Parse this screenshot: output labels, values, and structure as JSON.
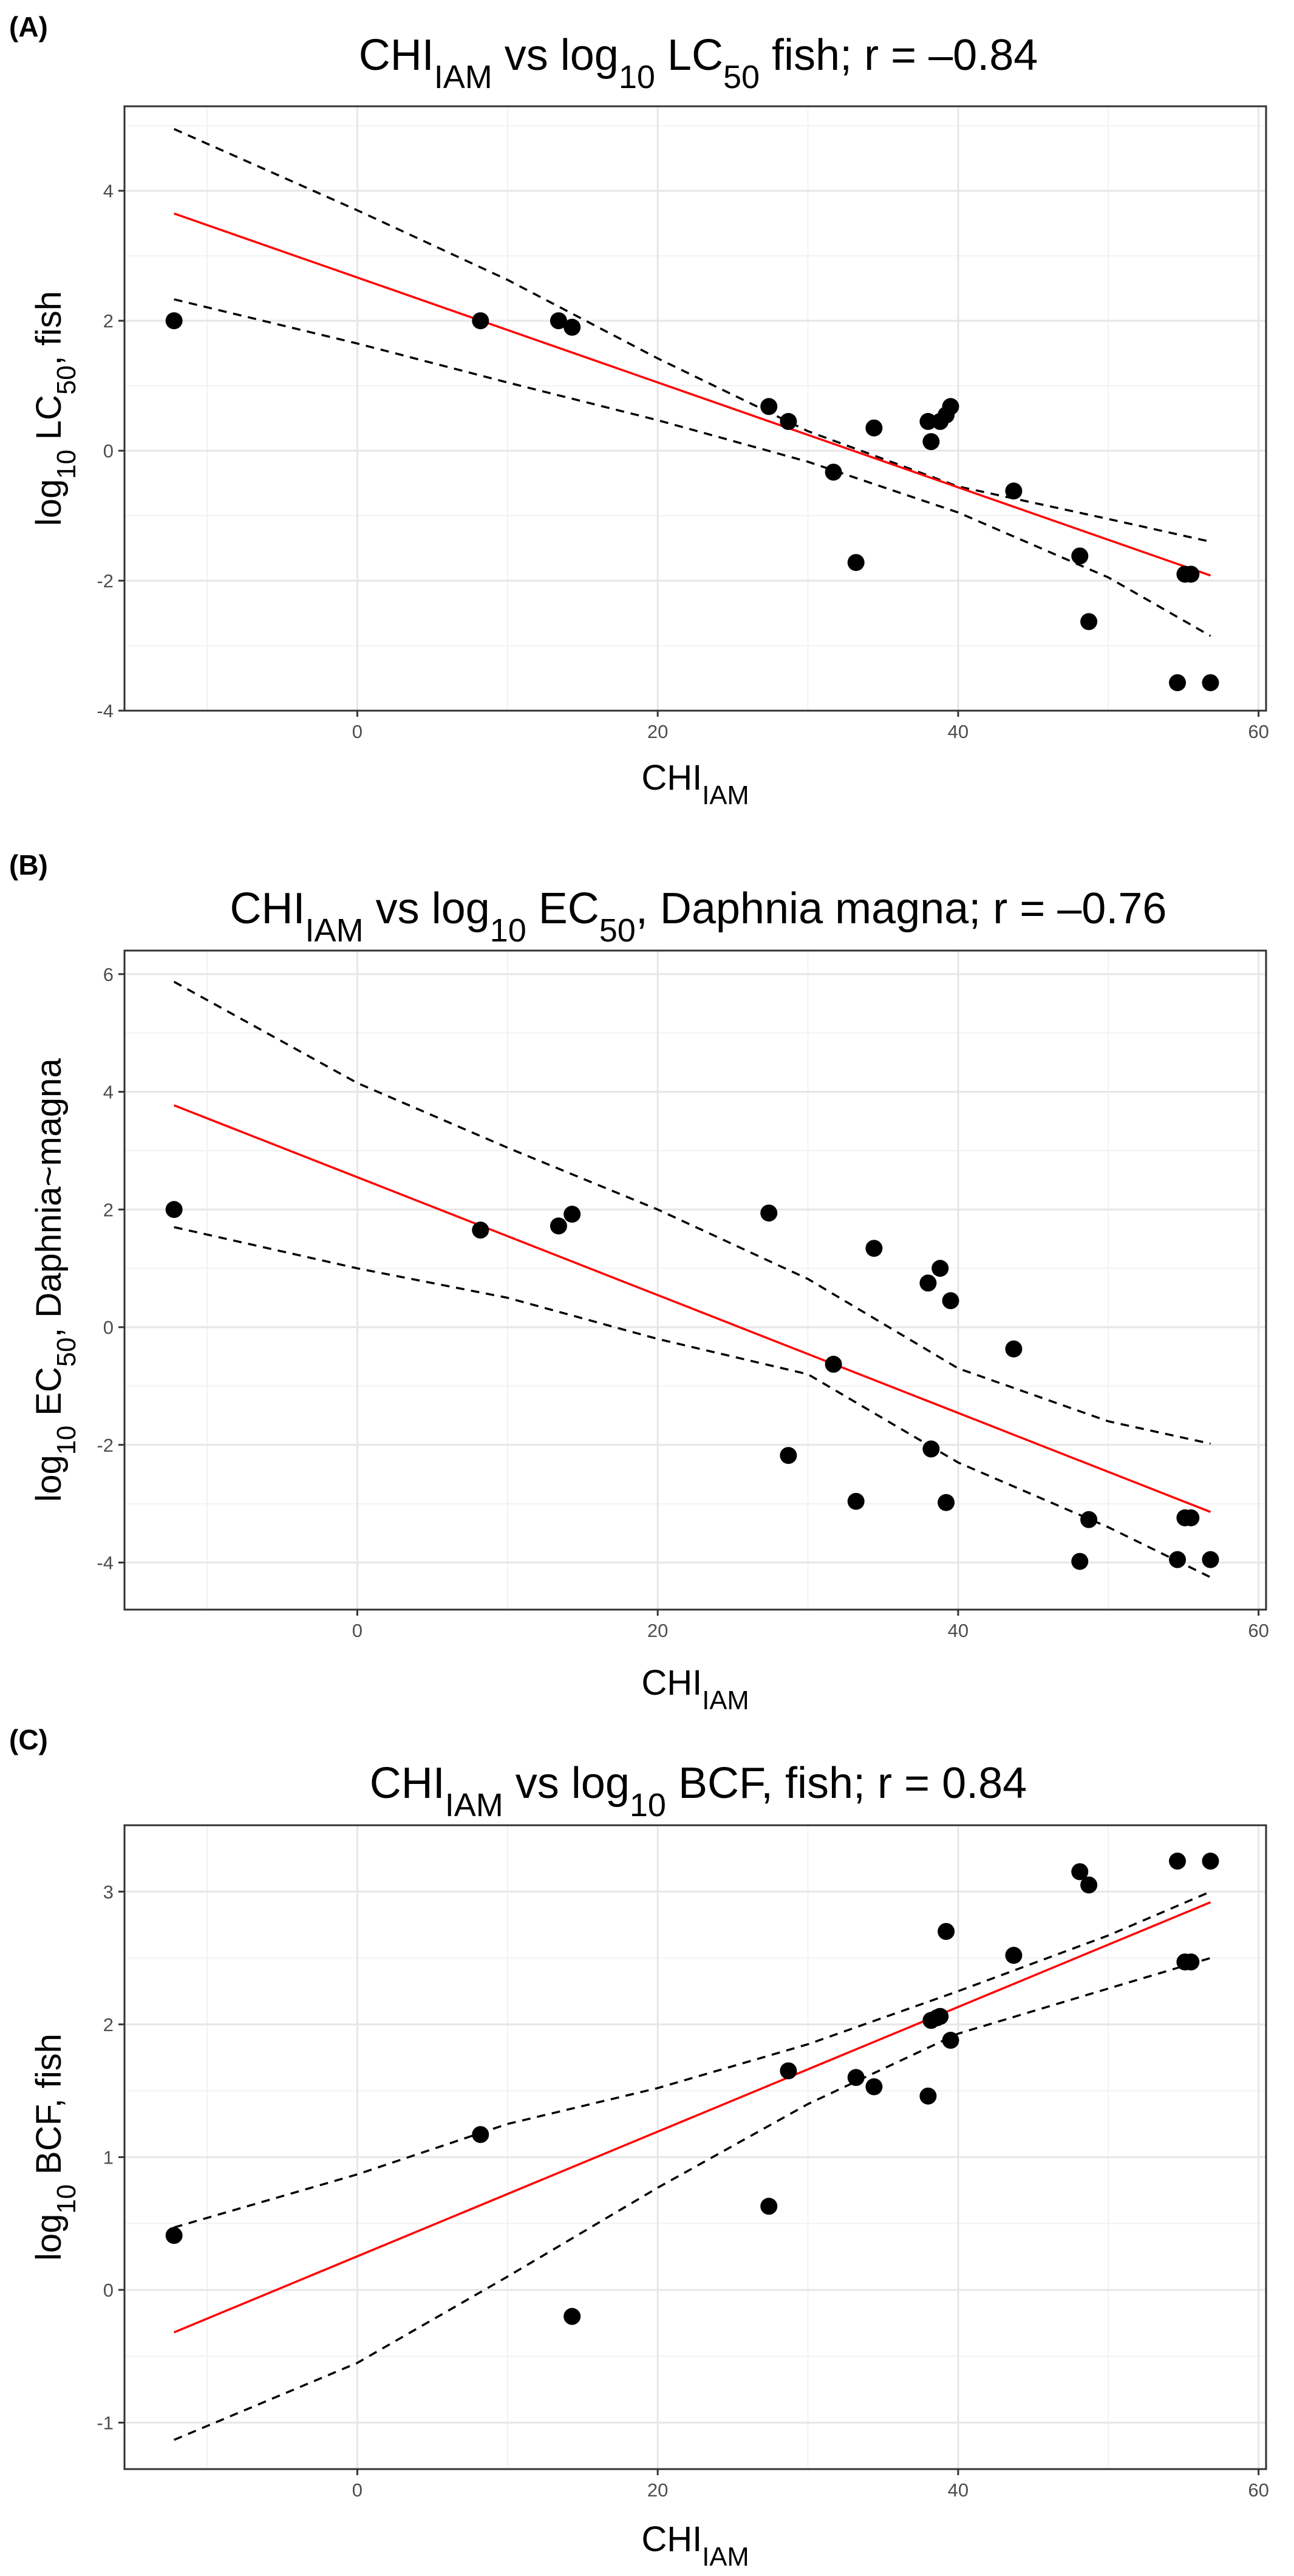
{
  "chart_data": [
    {
      "type": "scatter",
      "panel_label": "(A)",
      "title": {
        "base": "CHI",
        "sub1": "IAM",
        "mid": " vs log",
        "sub2": "10",
        "mid2": " LC",
        "sub3": "50",
        "tail": " fish; r = –0.84"
      },
      "xlabel": {
        "base": "CHI",
        "sub": "IAM"
      },
      "ylabel": {
        "pre": "log",
        "sub1": "10",
        "mid": " LC",
        "sub2": "50",
        "tail": ", fish"
      },
      "xlim": [
        -15.5,
        60.5
      ],
      "ylim": [
        -4,
        5.3
      ],
      "xticks": [
        0,
        20,
        40,
        60
      ],
      "yticks": [
        -4,
        -2,
        0,
        2,
        4
      ],
      "x": [
        -12.2,
        8.2,
        13.4,
        14.3,
        27.4,
        28.7,
        31.7,
        33.2,
        34.4,
        38.0,
        38.2,
        38.8,
        39.2,
        39.5,
        43.7,
        48.1,
        48.7,
        54.6,
        55.1,
        55.5,
        56.8
      ],
      "y": [
        2.0,
        2.0,
        2.0,
        1.9,
        0.68,
        0.45,
        -0.33,
        -1.72,
        0.35,
        0.45,
        0.14,
        0.45,
        0.55,
        0.68,
        -0.62,
        -1.62,
        -2.63,
        -3.57,
        -1.9,
        -1.9,
        -3.57
      ],
      "fit": {
        "x0": -12.2,
        "y0": 3.65,
        "x1": 56.8,
        "y1": -1.92
      },
      "upper_band": [
        [
          -12.2,
          4.95
        ],
        [
          0,
          3.7
        ],
        [
          10,
          2.63
        ],
        [
          20,
          1.42
        ],
        [
          30,
          0.3
        ],
        [
          40,
          -0.55
        ],
        [
          50,
          -1.05
        ],
        [
          56.8,
          -1.4
        ]
      ],
      "lower_band": [
        [
          -12.2,
          2.33
        ],
        [
          0,
          1.65
        ],
        [
          10,
          1.05
        ],
        [
          20,
          0.47
        ],
        [
          30,
          -0.17
        ],
        [
          40,
          -0.95
        ],
        [
          50,
          -1.95
        ],
        [
          56.8,
          -2.85
        ]
      ]
    },
    {
      "type": "scatter",
      "panel_label": "(B)",
      "title": {
        "base": "CHI",
        "sub1": "IAM",
        "mid": " vs log",
        "sub2": "10",
        "mid2": " EC",
        "sub3": "50",
        "tail": ", Daphnia magna; r = –0.76"
      },
      "xlabel": {
        "base": "CHI",
        "sub": "IAM"
      },
      "ylabel": {
        "pre": "log",
        "sub1": "10",
        "mid": " EC",
        "sub2": "50",
        "tail": ", Daphnia~magna"
      },
      "xlim": [
        -15.5,
        60.5
      ],
      "ylim": [
        -4.8,
        6.4
      ],
      "xticks": [
        0,
        20,
        40,
        60
      ],
      "yticks": [
        -4,
        -2,
        0,
        2,
        4,
        6
      ],
      "x": [
        -12.2,
        8.2,
        13.4,
        14.3,
        27.4,
        28.7,
        31.7,
        33.2,
        34.4,
        38.0,
        38.2,
        38.8,
        39.2,
        39.5,
        43.7,
        48.1,
        48.7,
        54.6,
        55.1,
        55.5,
        56.8
      ],
      "y": [
        2.0,
        1.65,
        1.72,
        1.92,
        1.94,
        -2.18,
        -0.63,
        -2.96,
        1.34,
        0.75,
        -2.07,
        1.0,
        -2.98,
        0.45,
        -0.37,
        -3.98,
        -3.27,
        -3.95,
        -3.24,
        -3.24,
        -3.95
      ],
      "fit": {
        "x0": -12.2,
        "y0": 3.77,
        "x1": 56.8,
        "y1": -3.14
      },
      "upper_band": [
        [
          -12.2,
          5.87
        ],
        [
          0,
          4.15
        ],
        [
          10,
          3.05
        ],
        [
          20,
          2.0
        ],
        [
          30,
          0.82
        ],
        [
          40,
          -0.7
        ],
        [
          50,
          -1.6
        ],
        [
          56.8,
          -1.98
        ]
      ],
      "lower_band": [
        [
          -12.2,
          1.7
        ],
        [
          0,
          1.0
        ],
        [
          10,
          0.5
        ],
        [
          20,
          -0.2
        ],
        [
          30,
          -0.8
        ],
        [
          40,
          -2.3
        ],
        [
          50,
          -3.4
        ],
        [
          56.8,
          -4.25
        ]
      ]
    },
    {
      "type": "scatter",
      "panel_label": "(C)",
      "title": {
        "base": "CHI",
        "sub1": "IAM",
        "mid": " vs log",
        "sub2": "10",
        "mid2": " BCF",
        "sub3": "",
        "tail": ", fish; r = 0.84"
      },
      "xlabel": {
        "base": "CHI",
        "sub": "IAM"
      },
      "ylabel": {
        "pre": "log",
        "sub1": "10",
        "mid": " BCF",
        "sub2": "",
        "tail": ", fish"
      },
      "xlim": [
        -15.5,
        60.5
      ],
      "ylim": [
        -1.35,
        3.5
      ],
      "xticks": [
        0,
        20,
        40,
        60
      ],
      "yticks": [
        -1,
        0,
        1,
        2,
        3
      ],
      "x": [
        -12.2,
        8.2,
        14.3,
        27.4,
        28.7,
        33.2,
        34.4,
        38.0,
        38.2,
        38.6,
        38.8,
        39.2,
        39.5,
        43.7,
        48.1,
        48.7,
        54.6,
        55.1,
        55.5,
        56.8
      ],
      "y": [
        0.41,
        1.17,
        -0.2,
        0.63,
        1.65,
        1.6,
        1.53,
        1.46,
        2.03,
        2.05,
        2.06,
        2.7,
        1.88,
        2.52,
        3.15,
        3.05,
        3.23,
        2.47,
        2.47,
        3.23
      ],
      "fit": {
        "x0": -12.2,
        "y0": -0.32,
        "x1": 56.8,
        "y1": 2.92
      },
      "upper_band": [
        [
          -12.2,
          0.47
        ],
        [
          0,
          0.87
        ],
        [
          10,
          1.25
        ],
        [
          20,
          1.52
        ],
        [
          30,
          1.85
        ],
        [
          40,
          2.25
        ],
        [
          50,
          2.67
        ],
        [
          56.8,
          3.0
        ]
      ],
      "lower_band": [
        [
          -12.2,
          -1.13
        ],
        [
          0,
          -0.55
        ],
        [
          10,
          0.1
        ],
        [
          20,
          0.77
        ],
        [
          30,
          1.4
        ],
        [
          40,
          1.93
        ],
        [
          50,
          2.27
        ],
        [
          56.8,
          2.5
        ]
      ]
    }
  ]
}
